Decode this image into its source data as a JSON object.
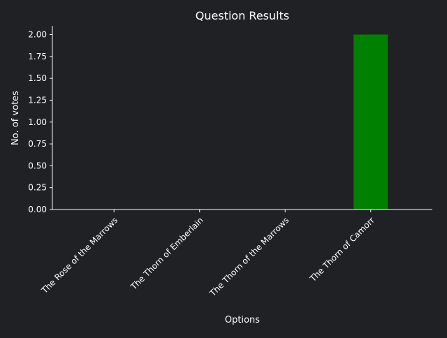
{
  "colors": {
    "background": "#202124",
    "axis": "#ffffff",
    "text": "#ffffff",
    "bar": "#008000"
  },
  "chart_data": {
    "type": "bar",
    "title": "Question Results",
    "xlabel": "Options",
    "ylabel": "No. of votes",
    "categories": [
      "The Rose of the Marrows",
      "The Thorn of Emberlain",
      "The Thorn of the Marrows",
      "The Thorn of Camorr"
    ],
    "values": [
      0,
      0,
      0,
      2
    ],
    "ylim": [
      0,
      2.1
    ],
    "yticks": [
      "0.00",
      "0.25",
      "0.50",
      "0.75",
      "1.00",
      "1.25",
      "1.50",
      "1.75",
      "2.00"
    ],
    "grid": false,
    "legend": "none"
  }
}
